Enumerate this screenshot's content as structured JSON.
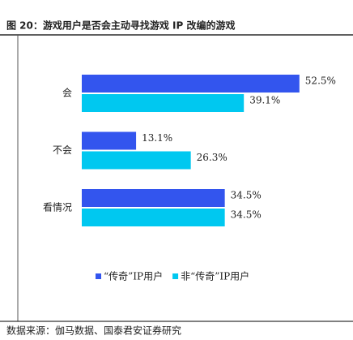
{
  "chart_data": {
    "type": "hbar",
    "title": "图 20：游戏用户是否会主动寻找游戏 IP 改编的游戏",
    "source": "数据来源：伽马数据、国泰君安证券研究",
    "categories": [
      "会",
      "不会",
      "看情况"
    ],
    "series": [
      {
        "name": "“传奇”IP用户",
        "color": "#3355ee",
        "values": [
          52.5,
          13.1,
          34.5
        ],
        "value_labels": [
          "52.5%",
          "13.1%",
          "34.5%"
        ]
      },
      {
        "name": "非“传奇”IP用户",
        "color": "#00c8f0",
        "values": [
          39.1,
          26.3,
          34.5
        ],
        "value_labels": [
          "39.1%",
          "26.3%",
          "34.5%"
        ]
      }
    ],
    "legend": "bottom"
  }
}
